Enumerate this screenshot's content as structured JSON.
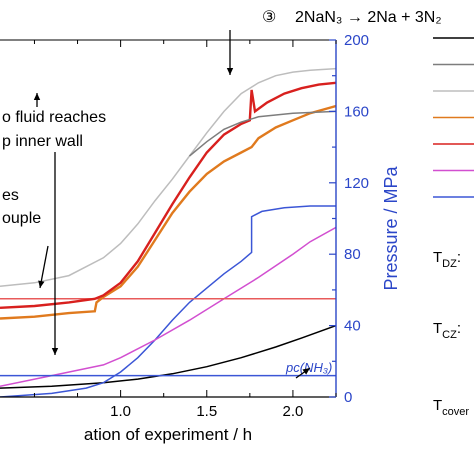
{
  "chart_data": {
    "type": "line",
    "xlabel": "ation of experiment / h",
    "ylabel_right": "Pressure / MPa",
    "xlim": [
      0.3,
      2.25
    ],
    "ylim_right": [
      0,
      200
    ],
    "x_ticks": [
      {
        "value": 1.0,
        "label": "1.0"
      },
      {
        "value": 1.5,
        "label": "1.5"
      },
      {
        "value": 2.0,
        "label": "2.0"
      }
    ],
    "y_ticks_right": [
      {
        "value": 0,
        "label": "0"
      },
      {
        "value": 40,
        "label": "40"
      },
      {
        "value": 80,
        "label": "80"
      },
      {
        "value": 120,
        "label": "120"
      },
      {
        "value": 160,
        "label": "160"
      },
      {
        "value": 200,
        "label": "200"
      }
    ],
    "annotations": {
      "reaction_marker": "③",
      "reaction_text": "2NaN₃ → 2Na + 3N₂",
      "fluid_line1": "o fluid reaches",
      "fluid_line2": "p inner wall",
      "couple_line1": "es",
      "couple_line2": "ouple",
      "pc_label": "pᴄ(NH₃)"
    },
    "legend_labels": [
      {
        "main": "T",
        "sub": "DZ",
        "suffix": ":"
      },
      {
        "main": "T",
        "sub": "CZ",
        "suffix": ":"
      },
      {
        "main": "T",
        "sub": "cover",
        "suffix": ""
      }
    ],
    "series": [
      {
        "color": "#000000",
        "axis": "right",
        "points": [
          [
            0.3,
            5
          ],
          [
            0.6,
            6
          ],
          [
            0.9,
            8
          ],
          [
            1.1,
            10
          ],
          [
            1.3,
            13
          ],
          [
            1.5,
            17
          ],
          [
            1.7,
            22
          ],
          [
            1.9,
            28
          ],
          [
            2.05,
            33
          ],
          [
            2.25,
            40
          ]
        ]
      },
      {
        "color": "#3b56d6",
        "axis": "right",
        "points": [
          [
            0.3,
            0
          ],
          [
            0.6,
            2
          ],
          [
            0.8,
            5
          ],
          [
            0.9,
            8
          ],
          [
            1.0,
            14
          ],
          [
            1.1,
            22
          ],
          [
            1.2,
            32
          ],
          [
            1.3,
            43
          ],
          [
            1.4,
            53
          ],
          [
            1.5,
            61
          ],
          [
            1.6,
            69
          ],
          [
            1.7,
            76
          ],
          [
            1.76,
            81
          ],
          [
            1.76,
            101
          ],
          [
            1.78,
            102
          ],
          [
            1.82,
            104
          ],
          [
            1.95,
            106
          ],
          [
            2.1,
            107
          ],
          [
            2.25,
            107
          ]
        ]
      },
      {
        "color": "#d24fd0",
        "axis": "right",
        "points": [
          [
            0.3,
            6
          ],
          [
            0.6,
            12
          ],
          [
            0.9,
            18
          ],
          [
            1.0,
            22
          ],
          [
            1.2,
            32
          ],
          [
            1.4,
            43
          ],
          [
            1.6,
            55
          ],
          [
            1.8,
            67
          ],
          [
            2.0,
            80
          ],
          [
            2.1,
            87
          ],
          [
            2.25,
            95
          ]
        ]
      },
      {
        "color": "#e85a5a",
        "axis": "right",
        "points": [
          [
            0.3,
            55
          ],
          [
            2.25,
            55
          ]
        ]
      },
      {
        "color": "#e07a1e",
        "axis": "right",
        "points": [
          [
            0.3,
            44
          ],
          [
            0.5,
            45
          ],
          [
            0.7,
            47
          ],
          [
            0.85,
            48
          ],
          [
            0.86,
            53
          ],
          [
            0.9,
            56
          ],
          [
            1.0,
            62
          ],
          [
            1.1,
            73
          ],
          [
            1.2,
            88
          ],
          [
            1.3,
            103
          ],
          [
            1.4,
            115
          ],
          [
            1.5,
            125
          ],
          [
            1.6,
            132
          ],
          [
            1.7,
            137
          ],
          [
            1.76,
            140
          ],
          [
            1.8,
            145
          ],
          [
            1.9,
            151
          ],
          [
            2.0,
            155
          ],
          [
            2.1,
            159
          ],
          [
            2.25,
            163
          ]
        ]
      },
      {
        "color": "#d8201e",
        "axis": "right",
        "points": [
          [
            0.3,
            50
          ],
          [
            0.5,
            51
          ],
          [
            0.7,
            53
          ],
          [
            0.85,
            55
          ],
          [
            0.9,
            57
          ],
          [
            1.0,
            64
          ],
          [
            1.1,
            76
          ],
          [
            1.2,
            92
          ],
          [
            1.3,
            108
          ],
          [
            1.4,
            123
          ],
          [
            1.5,
            137
          ],
          [
            1.6,
            147
          ],
          [
            1.7,
            153
          ],
          [
            1.75,
            155
          ],
          [
            1.76,
            172
          ],
          [
            1.78,
            160
          ],
          [
            1.85,
            165
          ],
          [
            1.95,
            170
          ],
          [
            2.05,
            173
          ],
          [
            2.15,
            175
          ],
          [
            2.25,
            176
          ]
        ]
      },
      {
        "color": "#bdbdbd",
        "axis": "right",
        "points": [
          [
            0.3,
            62
          ],
          [
            0.5,
            64
          ],
          [
            0.7,
            68
          ],
          [
            0.9,
            78
          ],
          [
            1.0,
            86
          ],
          [
            1.1,
            97
          ],
          [
            1.2,
            110
          ],
          [
            1.3,
            122
          ],
          [
            1.4,
            135
          ],
          [
            1.5,
            148
          ],
          [
            1.6,
            160
          ],
          [
            1.7,
            170
          ],
          [
            1.8,
            176
          ],
          [
            1.9,
            180
          ],
          [
            2.0,
            182
          ],
          [
            2.1,
            183
          ],
          [
            2.25,
            184
          ]
        ]
      },
      {
        "color": "#7d7d7d",
        "axis": "right",
        "points": [
          [
            1.4,
            135
          ],
          [
            1.5,
            143
          ],
          [
            1.6,
            150
          ],
          [
            1.7,
            154
          ],
          [
            1.8,
            157
          ],
          [
            1.9,
            158
          ],
          [
            2.0,
            159
          ],
          [
            2.25,
            160
          ]
        ]
      },
      {
        "color": "#3b56d6",
        "axis": "right",
        "points": [
          [
            0.3,
            12
          ],
          [
            2.25,
            12
          ]
        ]
      }
    ],
    "legend_swatches": [
      "#000000",
      "#7d7d7d",
      "#bdbdbd",
      "#e07a1e",
      "#d8201e",
      "#d24fd0",
      "#3b56d6"
    ]
  }
}
